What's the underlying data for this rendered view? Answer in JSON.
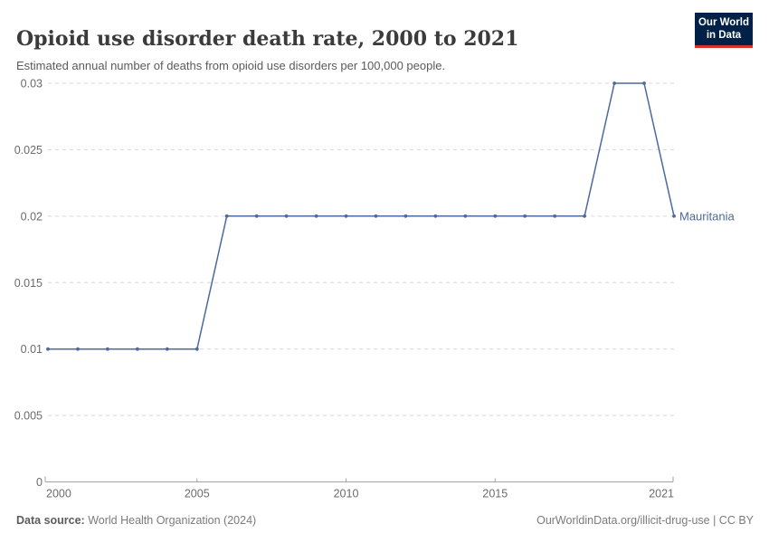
{
  "header": {
    "title": "Opioid use disorder death rate, 2000 to 2021",
    "subtitle": "Estimated annual number of deaths from opioid use disorders per 100,000 people.",
    "logo": {
      "line1": "Our World",
      "line2": "in Data",
      "bg_color": "#002147",
      "accent_color": "#dc2f32"
    }
  },
  "chart_data": {
    "type": "line",
    "title": "Opioid use disorder death rate, 2000 to 2021",
    "x": [
      2000,
      2001,
      2002,
      2003,
      2004,
      2005,
      2006,
      2007,
      2008,
      2009,
      2010,
      2011,
      2012,
      2013,
      2014,
      2015,
      2016,
      2017,
      2018,
      2019,
      2020,
      2021
    ],
    "series": [
      {
        "name": "Mauritania",
        "color": "#4c6a9c",
        "values": [
          0.01,
          0.01,
          0.01,
          0.01,
          0.01,
          0.01,
          0.02,
          0.02,
          0.02,
          0.02,
          0.02,
          0.02,
          0.02,
          0.02,
          0.02,
          0.02,
          0.02,
          0.02,
          0.02,
          0.03,
          0.03,
          0.02
        ]
      }
    ],
    "xlabel": "",
    "ylabel": "",
    "xlim": [
      2000,
      2021
    ],
    "ylim": [
      0,
      0.03
    ],
    "x_ticks": [
      2000,
      2005,
      2010,
      2015,
      2021
    ],
    "y_ticks": [
      0,
      0.005,
      0.01,
      0.015,
      0.02,
      0.025,
      0.03
    ],
    "y_tick_labels": [
      "0",
      "0.005",
      "0.01",
      "0.015",
      "0.02",
      "0.025",
      "0.03"
    ],
    "grid": "horizontal-dashed",
    "legend_position": "end-of-line-label",
    "grid_color": "#d7d7d7",
    "axis_color": "#a3a3a3",
    "tick_label_color": "#6b6b6b"
  },
  "footer": {
    "source_label": "Data source:",
    "source_rest": " World Health Organization (2024)",
    "link_text": "OurWorldinData.org/illicit-drug-use | CC BY"
  }
}
